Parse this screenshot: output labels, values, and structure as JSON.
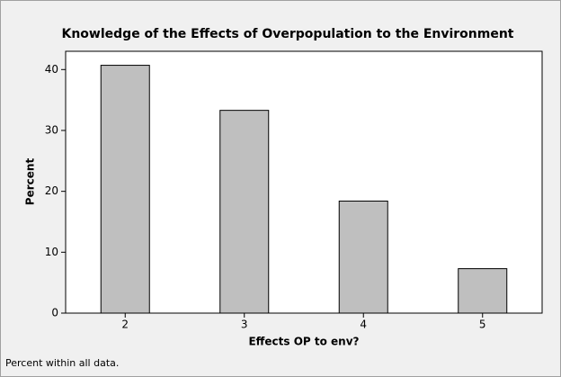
{
  "chart_data": {
    "type": "bar",
    "title": "Knowledge of the Effects of Overpopulation to the Environment",
    "x_label": "Effects OP to env?",
    "y_label": "Percent",
    "footnote": "Percent within all data.",
    "categories": [
      "2",
      "3",
      "4",
      "5"
    ],
    "values": [
      40.7,
      33.3,
      18.4,
      7.3
    ],
    "color": "#bfbfbf",
    "ylim": [
      0,
      43
    ],
    "yticks": [
      0,
      10,
      20,
      30,
      40
    ]
  }
}
